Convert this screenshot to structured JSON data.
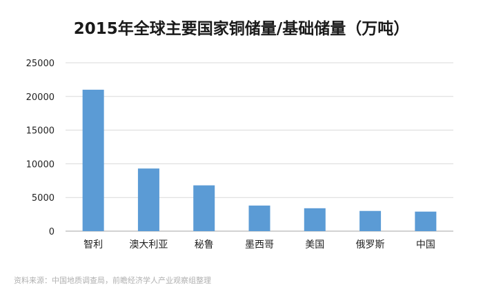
{
  "chart_data": {
    "type": "bar",
    "title": "2015年全球主要国家铜储量/基础储量（万吨）",
    "categories": [
      "智利",
      "澳大利亚",
      "秘鲁",
      "墨西哥",
      "美国",
      "俄罗斯",
      "中国"
    ],
    "values": [
      21000,
      9300,
      6800,
      3800,
      3400,
      3000,
      2900
    ],
    "ylim": [
      0,
      25000
    ],
    "yticks": [
      "0",
      "5000",
      "10000",
      "15000",
      "20000",
      "25000"
    ],
    "xlabel": "",
    "ylabel": "",
    "grid": true,
    "legend": "none",
    "bar_color": "#5b9bd5"
  },
  "source": "资料来源：中国地质调查局，前瞻经济学人产业观察组整理"
}
